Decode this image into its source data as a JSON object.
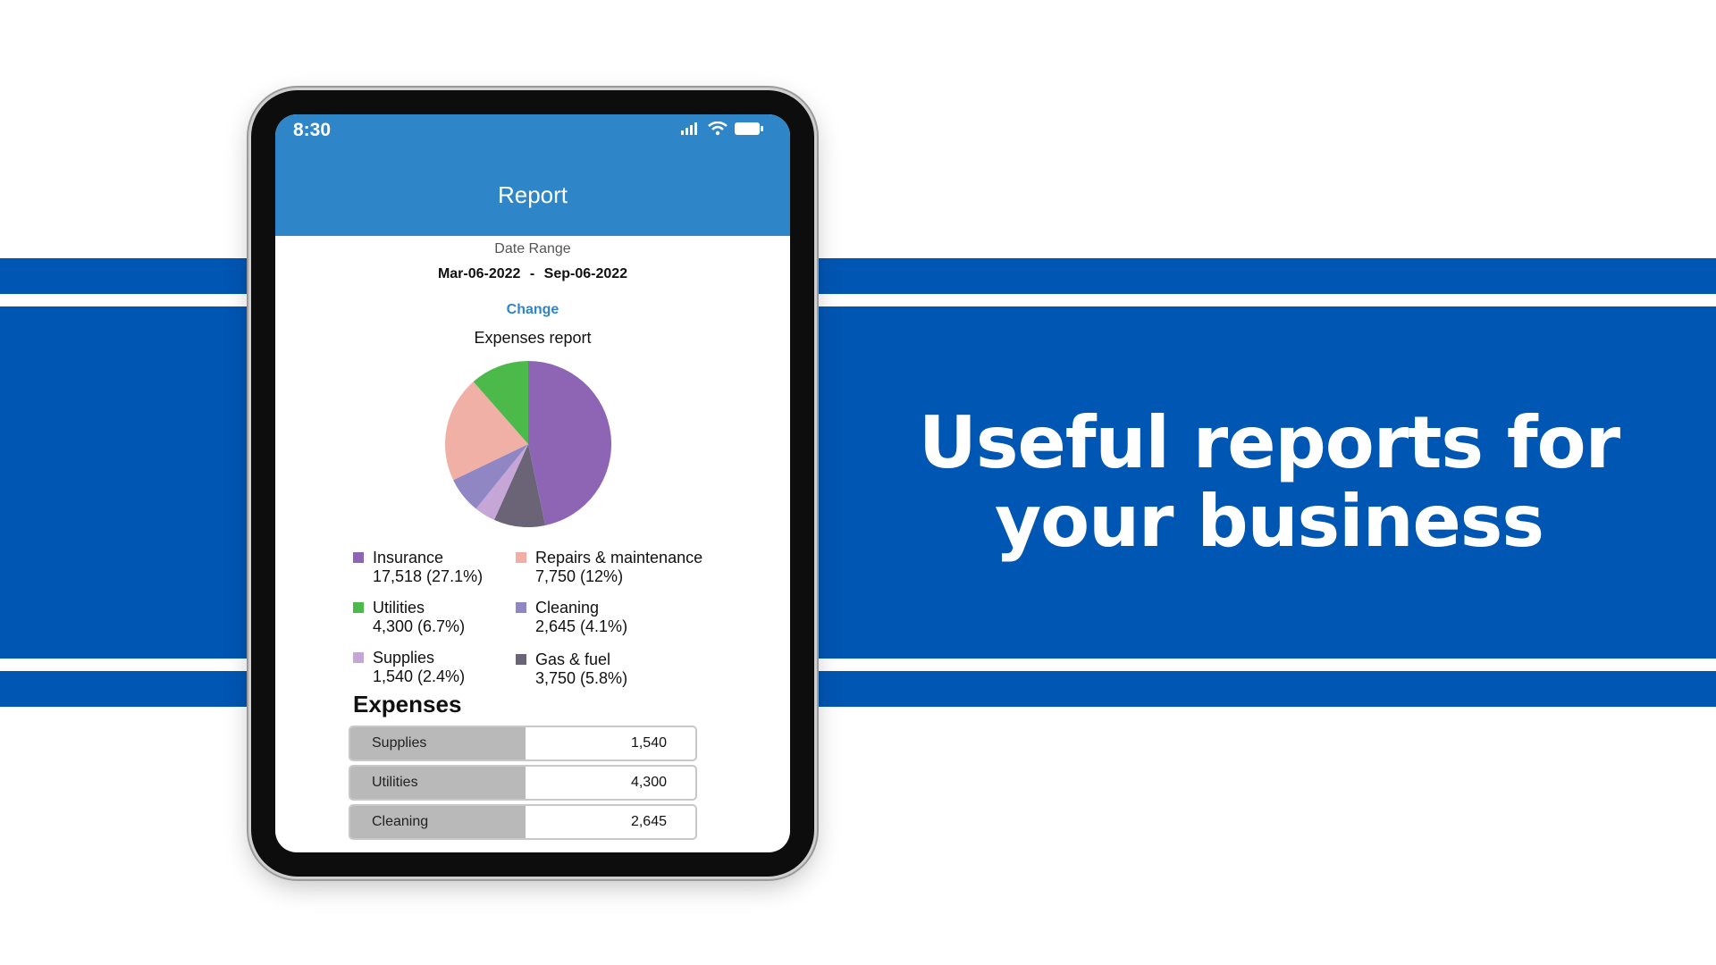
{
  "headline": {
    "line1": "Useful reports for",
    "line2": "your business"
  },
  "status": {
    "time": "8:30"
  },
  "app": {
    "title": "Report"
  },
  "date_range": {
    "label": "Date Range",
    "start": "Mar-06-2022",
    "separator": "-",
    "end": "Sep-06-2022",
    "change_label": "Change"
  },
  "report_title": "Expenses report",
  "legend": [
    {
      "name": "Insurance",
      "detail": "17,518 (27.1%)",
      "color": "#8e65b5"
    },
    {
      "name": "Repairs & maintenance",
      "detail": "7,750 (12%)",
      "color": "#f0b0a6"
    },
    {
      "name": "Utilities",
      "detail": "4,300 (6.7%)",
      "color": "#4cba4a"
    },
    {
      "name": "Cleaning",
      "detail": "2,645 (4.1%)",
      "color": "#9086c4"
    },
    {
      "name": "Supplies",
      "detail": "1,540 (2.4%)",
      "color": "#c5a6d6"
    },
    {
      "name": "Gas & fuel",
      "detail": "3,750 (5.8%)",
      "color": "#6b6477"
    }
  ],
  "chart_data": {
    "type": "pie",
    "title": "Expenses report",
    "categories": [
      "Insurance",
      "Repairs & maintenance",
      "Utilities",
      "Cleaning",
      "Supplies",
      "Gas & fuel"
    ],
    "values": [
      17518,
      7750,
      4300,
      2645,
      1540,
      3750
    ],
    "percents": [
      27.1,
      12,
      6.7,
      4.1,
      2.4,
      5.8
    ],
    "colors": [
      "#8e65b5",
      "#f0b0a6",
      "#4cba4a",
      "#9086c4",
      "#c5a6d6",
      "#6b6477"
    ]
  },
  "expenses": {
    "heading": "Expenses",
    "rows": [
      {
        "name": "Supplies",
        "value": "1,540"
      },
      {
        "name": "Utilities",
        "value": "4,300"
      },
      {
        "name": "Cleaning",
        "value": "2,645"
      }
    ]
  },
  "colors": {
    "band": "#0056b3",
    "appbar": "#2e86c9"
  },
  "icons": [
    "signal-icon",
    "wifi-icon",
    "battery-icon"
  ]
}
